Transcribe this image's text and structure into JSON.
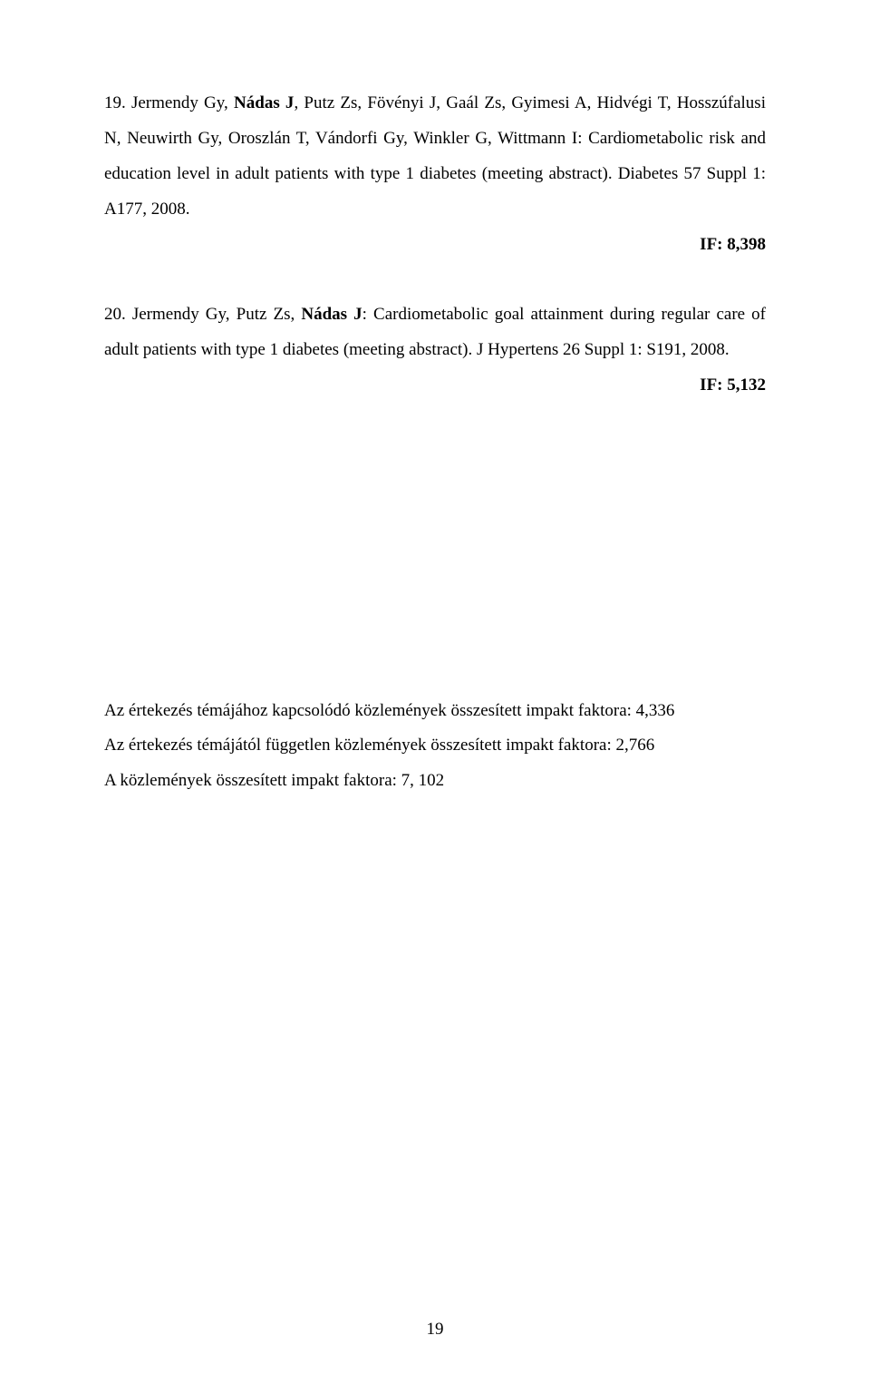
{
  "ref19": {
    "line1_pre": "19. Jermendy Gy, ",
    "line1_bold": "Nádas J",
    "line1_post": ", Putz Zs, Fövényi J, Gaál Zs, Gyimesi A, Hidvégi T, Hosszúfalusi N, Neuwirth Gy, Oroszlán T, Vándorfi Gy, Winkler G, Wittmann I: Cardiometabolic risk and education level in adult patients with type 1 diabetes (meeting abstract). Diabetes 57 Suppl 1: A177, 2008."
  },
  "if19": "IF: 8,398",
  "ref20": {
    "line1_pre": "20. Jermendy Gy, Putz Zs, ",
    "line1_bold": "Nádas J",
    "line1_post": ": Cardiometabolic goal attainment during regular care of adult patients with type 1 diabetes (meeting abstract). J Hypertens 26 Suppl 1: S191, 2008."
  },
  "if20": "IF: 5,132",
  "summary": {
    "line1": "Az értekezés témájához kapcsolódó közlemények összesített impakt faktora: 4,336",
    "line2": "Az értekezés témájától független közlemények összesített impakt faktora: 2,766",
    "line3": "A közlemények összesített impakt faktora: 7, 102"
  },
  "pageNumber": "19"
}
